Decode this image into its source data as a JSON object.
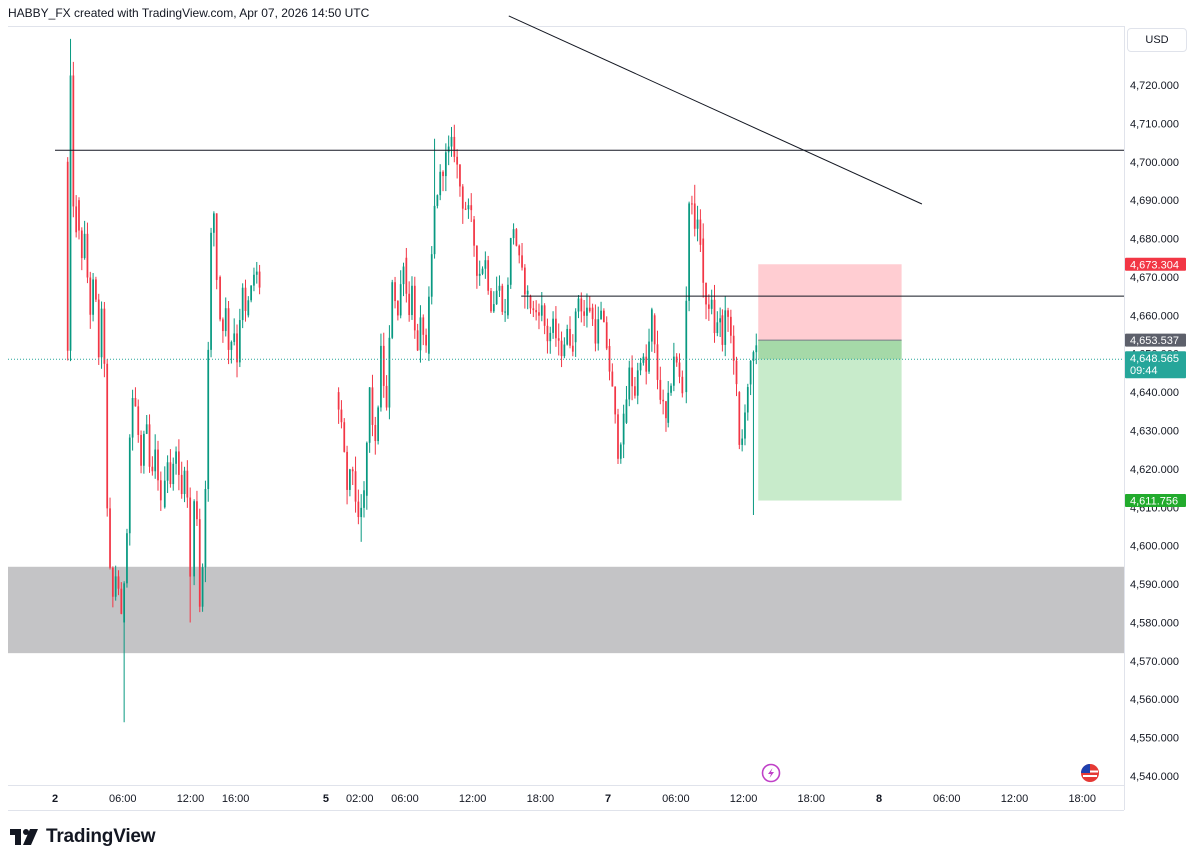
{
  "header": {
    "attribution": "HABBY_FX created with TradingView.com, Apr 07, 2026 14:50 UTC"
  },
  "currency": "USD",
  "brand": {
    "name": "TradingView"
  },
  "colors": {
    "up": "#089981",
    "down": "#f23645",
    "stop_zone": "#ffcdd2",
    "target_zone": "#c8ebcb",
    "support_zone": "#c4c4c6",
    "stop_tag": "#f23645",
    "entry_tag": "#5d606b",
    "price_tag": "#26a69a",
    "target_tag": "#22ab2d"
  },
  "chart_data": {
    "type": "candlestick",
    "y_axis": {
      "ticks": [
        "4,720.000",
        "4,710.000",
        "4,700.000",
        "4,690.000",
        "4,680.000",
        "4,670.000",
        "4,660.000",
        "4,650.000",
        "4,640.000",
        "4,630.000",
        "4,620.000",
        "4,610.000",
        "4,600.000",
        "4,590.000",
        "4,580.000",
        "4,570.000",
        "4,560.000",
        "4,550.000",
        "4,540.000"
      ],
      "tick_values": [
        4720,
        4710,
        4700,
        4690,
        4680,
        4670,
        4660,
        4650,
        4640,
        4630,
        4620,
        4610,
        4600,
        4590,
        4580,
        4570,
        4560,
        4550,
        4540
      ],
      "range": [
        4537,
        4735
      ]
    },
    "x_axis": {
      "ticks": [
        {
          "label": "2",
          "hour": 0,
          "bold": true
        },
        {
          "label": "06:00",
          "hour": 6
        },
        {
          "label": "12:00",
          "hour": 12
        },
        {
          "label": "16:00",
          "hour": 16
        },
        {
          "label": "5",
          "hour": 24,
          "bold": true
        },
        {
          "label": "02:00",
          "hour": 27
        },
        {
          "label": "06:00",
          "hour": 31
        },
        {
          "label": "12:00",
          "hour": 37
        },
        {
          "label": "18:00",
          "hour": 43
        },
        {
          "label": "7",
          "hour": 49,
          "bold": true
        },
        {
          "label": "06:00",
          "hour": 55
        },
        {
          "label": "12:00",
          "hour": 61
        },
        {
          "label": "18:00",
          "hour": 67
        },
        {
          "label": "8",
          "hour": 73,
          "bold": true
        },
        {
          "label": "06:00",
          "hour": 79
        },
        {
          "label": "12:00",
          "hour": 85
        },
        {
          "label": "18:00",
          "hour": 91
        }
      ]
    },
    "segments": [
      {
        "from": 1.0,
        "to": 2.0,
        "prices": [
          4700,
          4650,
          4720,
          4690,
          4680
        ]
      },
      {
        "from": 2.0,
        "to": 6.0,
        "prices": [
          4690,
          4675,
          4680,
          4660,
          4670,
          4650,
          4665,
          4600,
          4585,
          4595,
          4580
        ]
      },
      {
        "from": 6.0,
        "to": 9.6,
        "prices": [
          4580,
          4600,
          4640,
          4635,
          4620,
          4632,
          4615,
          4625,
          4610
        ]
      },
      {
        "from": 9.6,
        "to": 12.2,
        "prices": [
          4610,
          4625,
          4615,
          4627,
          4610,
          4625,
          4592
        ]
      },
      {
        "from": 12.2,
        "to": 14.5,
        "prices": [
          4592,
          4620,
          4585,
          4600,
          4650,
          4695,
          4670
        ]
      },
      {
        "from": 14.5,
        "to": 17.0,
        "prices": [
          4670,
          4655,
          4662,
          4650,
          4658,
          4648,
          4668,
          4660
        ]
      },
      {
        "from": 17.0,
        "to": 18.3,
        "prices": [
          4660,
          4665,
          4672,
          4668
        ]
      },
      {
        "from": 25.0,
        "to": 27.5,
        "prices": [
          4640,
          4630,
          4615,
          4620,
          4605,
          4613
        ]
      },
      {
        "from": 27.5,
        "to": 31.0,
        "prices": [
          4613,
          4640,
          4625,
          4650,
          4635,
          4670,
          4660,
          4675
        ]
      },
      {
        "from": 31.0,
        "to": 33.0,
        "prices": [
          4675,
          4660,
          4668,
          4648,
          4660,
          4650
        ]
      },
      {
        "from": 33.0,
        "to": 37.0,
        "prices": [
          4650,
          4690,
          4700,
          4705,
          4690,
          4685
        ]
      },
      {
        "from": 37.0,
        "to": 40.0,
        "prices": [
          4685,
          4670,
          4675,
          4662,
          4668,
          4660
        ]
      },
      {
        "from": 40.0,
        "to": 42.0,
        "prices": [
          4660,
          4685,
          4672,
          4665
        ]
      },
      {
        "from": 42.0,
        "to": 46.0,
        "prices": [
          4665,
          4660,
          4663,
          4654,
          4657,
          4650,
          4655,
          4653
        ]
      },
      {
        "from": 46.0,
        "to": 47.5,
        "prices": [
          4653,
          4665,
          4660,
          4662
        ]
      },
      {
        "from": 47.5,
        "to": 49.0,
        "prices": [
          4662,
          4655,
          4660,
          4652
        ]
      },
      {
        "from": 49.0,
        "to": 50.5,
        "prices": [
          4652,
          4640,
          4625,
          4632
        ]
      },
      {
        "from": 50.5,
        "to": 53.0,
        "prices": [
          4632,
          4645,
          4640,
          4650,
          4645,
          4660
        ]
      },
      {
        "from": 53.0,
        "to": 54.2,
        "prices": [
          4660,
          4645,
          4638,
          4632
        ]
      },
      {
        "from": 54.2,
        "to": 55.8,
        "prices": [
          4632,
          4640,
          4650,
          4645,
          4640
        ]
      },
      {
        "from": 55.8,
        "to": 57.3,
        "prices": [
          4640,
          4690,
          4685,
          4680
        ]
      },
      {
        "from": 57.3,
        "to": 59.0,
        "prices": [
          4680,
          4660,
          4665,
          4655,
          4660
        ]
      },
      {
        "from": 59.0,
        "to": 60.5,
        "prices": [
          4660,
          4650,
          4664,
          4655,
          4652,
          4640
        ]
      },
      {
        "from": 60.5,
        "to": 61.5,
        "prices": [
          4640,
          4620,
          4635,
          4642
        ]
      },
      {
        "from": 61.5,
        "to": 62.3,
        "prices": [
          4642,
          4648,
          4650
        ]
      }
    ],
    "drawings": {
      "horizontal_lines": [
        {
          "name": "resistance-line-upper",
          "price": 4703,
          "from_hour": 0,
          "to_hour": 999
        },
        {
          "name": "resistance-line-lower",
          "price": 4665,
          "from_hour": 41.3,
          "to_hour": 999
        }
      ],
      "trend_line": {
        "from": {
          "hour": 40.2,
          "price": 4738
        },
        "to": {
          "hour": 76.8,
          "price": 4689
        }
      },
      "support_zone": {
        "price_low": 4572,
        "price_high": 4594.5
      },
      "position": {
        "type": "short",
        "from_hour": 62.3,
        "to_hour": 75.0,
        "stop": 4673.304,
        "entry": 4653.537,
        "current": 4648.565,
        "target": 4611.756
      }
    },
    "price_tags": {
      "stop": "4,673.304",
      "entry": "4,653.537",
      "current": "4,648.565",
      "countdown": "09:44",
      "target": "4,611.756"
    }
  }
}
